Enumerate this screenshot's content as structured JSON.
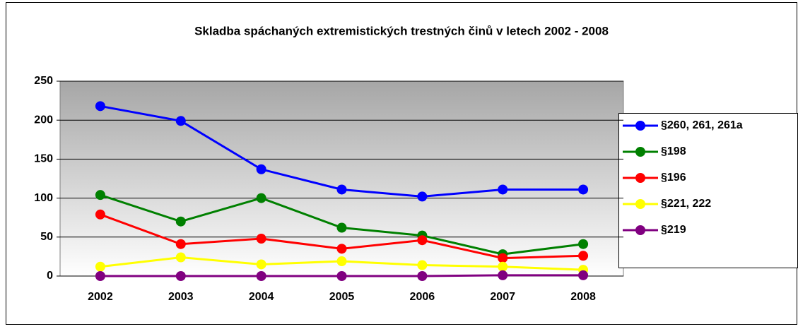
{
  "chart_data": {
    "type": "line",
    "title": "Skladba spáchaných extremistických trestných činů v letech 2002 - 2008",
    "categories": [
      "2002",
      "2003",
      "2004",
      "2005",
      "2006",
      "2007",
      "2008"
    ],
    "series": [
      {
        "name": "§260, 261, 261a",
        "color": "#0000ff",
        "values": [
          218,
          199,
          137,
          111,
          102,
          111,
          111
        ]
      },
      {
        "name": "§198",
        "color": "#008000",
        "values": [
          104,
          70,
          100,
          62,
          52,
          28,
          41
        ]
      },
      {
        "name": "§196",
        "color": "#ff0000",
        "values": [
          79,
          41,
          48,
          35,
          46,
          23,
          26
        ]
      },
      {
        "name": "§221, 222",
        "color": "#ffff00",
        "values": [
          12,
          24,
          15,
          19,
          14,
          12,
          8
        ]
      },
      {
        "name": "§219",
        "color": "#800080",
        "values": [
          0,
          0,
          0,
          0,
          0,
          1,
          1
        ]
      }
    ],
    "ylim": [
      0,
      250
    ],
    "yticks": [
      0,
      50,
      100,
      150,
      200,
      250
    ],
    "grid": true,
    "legend": "right"
  }
}
